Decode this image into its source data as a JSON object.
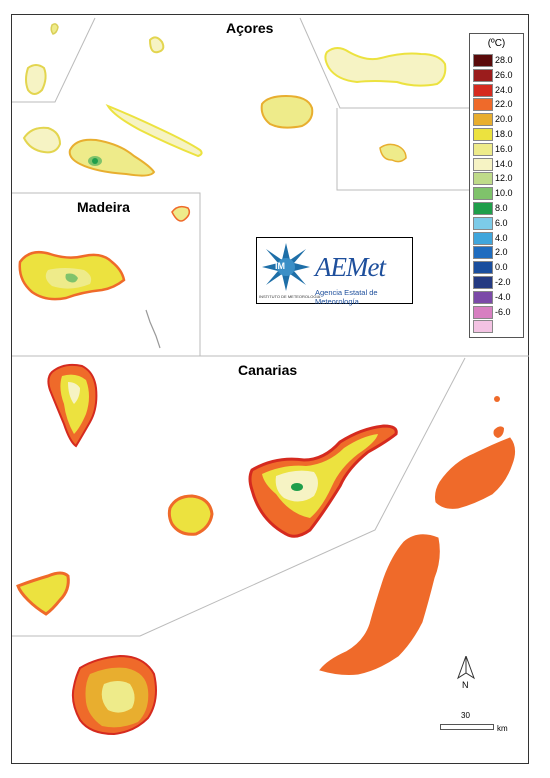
{
  "regions": {
    "azores": "Açores",
    "madeira": "Madeira",
    "canarias": "Canarias"
  },
  "legend": {
    "unit": "(ºC)",
    "items": [
      {
        "label": "28.0",
        "color": "#5a0a0a"
      },
      {
        "label": "26.0",
        "color": "#9b1c1c"
      },
      {
        "label": "24.0",
        "color": "#d52a1f"
      },
      {
        "label": "22.0",
        "color": "#ef6a2a"
      },
      {
        "label": "20.0",
        "color": "#e8ae2f"
      },
      {
        "label": "18.0",
        "color": "#ece23f"
      },
      {
        "label": "16.0",
        "color": "#eeeb8a"
      },
      {
        "label": "14.0",
        "color": "#f6f3c4"
      },
      {
        "label": "12.0",
        "color": "#bfdb8a"
      },
      {
        "label": "10.0",
        "color": "#7fc36b"
      },
      {
        "label": "8.0",
        "color": "#1f9e4a"
      },
      {
        "label": "6.0",
        "color": "#7ccbe8"
      },
      {
        "label": "4.0",
        "color": "#40a6dc"
      },
      {
        "label": "2.0",
        "color": "#1f6cbf"
      },
      {
        "label": "0.0",
        "color": "#1a4e9e"
      },
      {
        "label": "-2.0",
        "color": "#243a82"
      },
      {
        "label": "-4.0",
        "color": "#7b4aa8"
      },
      {
        "label": "-6.0",
        "color": "#d77fc1"
      },
      {
        "label": "",
        "color": "#f3c3e3"
      }
    ]
  },
  "logo": {
    "im_text": "IM",
    "im_sub": "INSTITUTO DE METEOROLOGIA",
    "aemet_text": "AEMet",
    "aemet_sub": "Agencia Estatal de Meteorología"
  },
  "scale": {
    "value": "30",
    "unit": "km"
  },
  "north": "N"
}
